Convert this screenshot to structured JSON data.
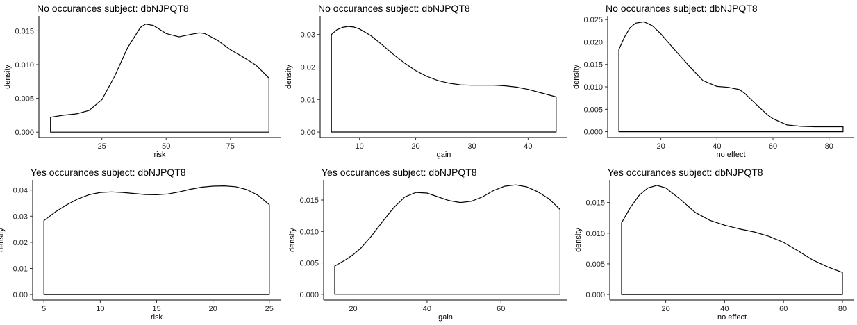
{
  "chart_data": [
    {
      "type": "area",
      "title": "No occurances subject:  dbNJPQT8",
      "xlabel": "risk",
      "ylabel": "density",
      "xlim": [
        0.5,
        94.5
      ],
      "ylim": [
        -0.0008,
        0.0172
      ],
      "xticks": [
        25,
        50,
        75
      ],
      "yticks": [
        0.0,
        0.005,
        0.01,
        0.015
      ],
      "ytick_labels": [
        "0.000",
        "0.005",
        "0.010",
        "0.015"
      ],
      "x": [
        5,
        10,
        15,
        20,
        25,
        30,
        35,
        40,
        42,
        45,
        50,
        55,
        60,
        63,
        65,
        70,
        75,
        80,
        85,
        90
      ],
      "y": [
        0.0022,
        0.0025,
        0.0027,
        0.0032,
        0.0048,
        0.0083,
        0.0125,
        0.0155,
        0.016,
        0.0158,
        0.0146,
        0.0141,
        0.0145,
        0.0147,
        0.0146,
        0.0136,
        0.0122,
        0.0111,
        0.0099,
        0.008
      ]
    },
    {
      "type": "area",
      "title": "No occurances subject:  dbNJPQT8",
      "xlabel": "gain",
      "ylabel": "density",
      "xlim": [
        3.0,
        47.0
      ],
      "ylim": [
        -0.0017,
        0.0357
      ],
      "xticks": [
        10,
        20,
        30,
        40
      ],
      "yticks": [
        0.0,
        0.01,
        0.02,
        0.03
      ],
      "ytick_labels": [
        "0.00",
        "0.01",
        "0.02",
        "0.03"
      ],
      "x": [
        5,
        6,
        7,
        8,
        9,
        10,
        12,
        14,
        16,
        18,
        20,
        22,
        24,
        26,
        28,
        30,
        32,
        34,
        36,
        38,
        40,
        42,
        45
      ],
      "y": [
        0.03,
        0.0315,
        0.0322,
        0.0325,
        0.0323,
        0.0317,
        0.0297,
        0.0269,
        0.0239,
        0.0212,
        0.0189,
        0.0171,
        0.0158,
        0.015,
        0.0145,
        0.0144,
        0.0144,
        0.0144,
        0.0142,
        0.0138,
        0.0131,
        0.0122,
        0.0108
      ]
    },
    {
      "type": "area",
      "title": "No occurances subject:  dbNJPQT8",
      "xlabel": "no effect",
      "ylabel": "density",
      "xlim": [
        1.0,
        89.0
      ],
      "ylim": [
        -0.0013,
        0.0258
      ],
      "xticks": [
        20,
        40,
        60,
        80
      ],
      "yticks": [
        0.0,
        0.005,
        0.01,
        0.015,
        0.02,
        0.025
      ],
      "ytick_labels": [
        "0.000",
        "0.005",
        "0.010",
        "0.015",
        "0.020",
        "0.025"
      ],
      "x": [
        5,
        7,
        9,
        11,
        14,
        17,
        20,
        25,
        30,
        35,
        40,
        44,
        48,
        50,
        52,
        55,
        58,
        60,
        65,
        70,
        75,
        80,
        85
      ],
      "y": [
        0.0183,
        0.0211,
        0.0232,
        0.0242,
        0.0245,
        0.0236,
        0.0218,
        0.0182,
        0.0147,
        0.0114,
        0.0101,
        0.0099,
        0.0094,
        0.0085,
        0.0073,
        0.0055,
        0.0038,
        0.0029,
        0.0015,
        0.0012,
        0.0011,
        0.0011,
        0.0011
      ]
    },
    {
      "type": "area",
      "title": "Yes occurances subject:  dbNJPQT8",
      "xlabel": "risk",
      "ylabel": "density",
      "xlim": [
        4.0,
        26.0
      ],
      "ylim": [
        -0.0021,
        0.0439
      ],
      "xticks": [
        5,
        10,
        15,
        20,
        25
      ],
      "yticks": [
        0.0,
        0.01,
        0.02,
        0.03,
        0.04
      ],
      "ytick_labels": [
        "0.00",
        "0.01",
        "0.02",
        "0.03",
        "0.04"
      ],
      "x": [
        5,
        6,
        7,
        8,
        9,
        10,
        11,
        12,
        13,
        14,
        15,
        16,
        17,
        18,
        19,
        20,
        21,
        22,
        23,
        24,
        25
      ],
      "y": [
        0.0283,
        0.0316,
        0.0343,
        0.0366,
        0.0382,
        0.0391,
        0.0393,
        0.0391,
        0.0387,
        0.0383,
        0.0382,
        0.0385,
        0.0393,
        0.0403,
        0.0411,
        0.0415,
        0.0416,
        0.0413,
        0.0402,
        0.038,
        0.0344
      ]
    },
    {
      "type": "area",
      "title": "Yes occurances subject:  dbNJPQT8",
      "xlabel": "gain",
      "ylabel": "density",
      "xlim": [
        12.0,
        78.0
      ],
      "ylim": [
        -0.0009,
        0.0182
      ],
      "xticks": [
        20,
        40,
        60
      ],
      "yticks": [
        0.0,
        0.005,
        0.01,
        0.015
      ],
      "ytick_labels": [
        "0.000",
        "0.005",
        "0.010",
        "0.015"
      ],
      "x": [
        15,
        18,
        20,
        22,
        25,
        28,
        31,
        34,
        37,
        40,
        43,
        46,
        49,
        52,
        55,
        58,
        61,
        64,
        67,
        70,
        73,
        76
      ],
      "y": [
        0.0045,
        0.0055,
        0.0063,
        0.0073,
        0.0093,
        0.0116,
        0.0138,
        0.0155,
        0.0162,
        0.0161,
        0.0155,
        0.0149,
        0.0146,
        0.0148,
        0.0155,
        0.0165,
        0.0172,
        0.0174,
        0.0171,
        0.0163,
        0.0152,
        0.0135
      ]
    },
    {
      "type": "area",
      "title": "Yes occurances subject:  dbNJPQT8",
      "xlabel": "no effect",
      "ylabel": "density",
      "xlim": [
        1.0,
        84.0
      ],
      "ylim": [
        -0.0009,
        0.0187
      ],
      "xticks": [
        20,
        40,
        60,
        80
      ],
      "yticks": [
        0.0,
        0.005,
        0.01,
        0.015
      ],
      "ytick_labels": [
        "0.000",
        "0.005",
        "0.010",
        "0.015"
      ],
      "x": [
        5,
        8,
        11,
        14,
        17,
        20,
        25,
        30,
        35,
        40,
        45,
        50,
        55,
        60,
        65,
        70,
        75,
        80
      ],
      "y": [
        0.0117,
        0.0142,
        0.0162,
        0.0174,
        0.0178,
        0.0174,
        0.0155,
        0.0134,
        0.0121,
        0.0113,
        0.0107,
        0.0102,
        0.0095,
        0.0085,
        0.0071,
        0.0056,
        0.0045,
        0.0036
      ]
    }
  ]
}
